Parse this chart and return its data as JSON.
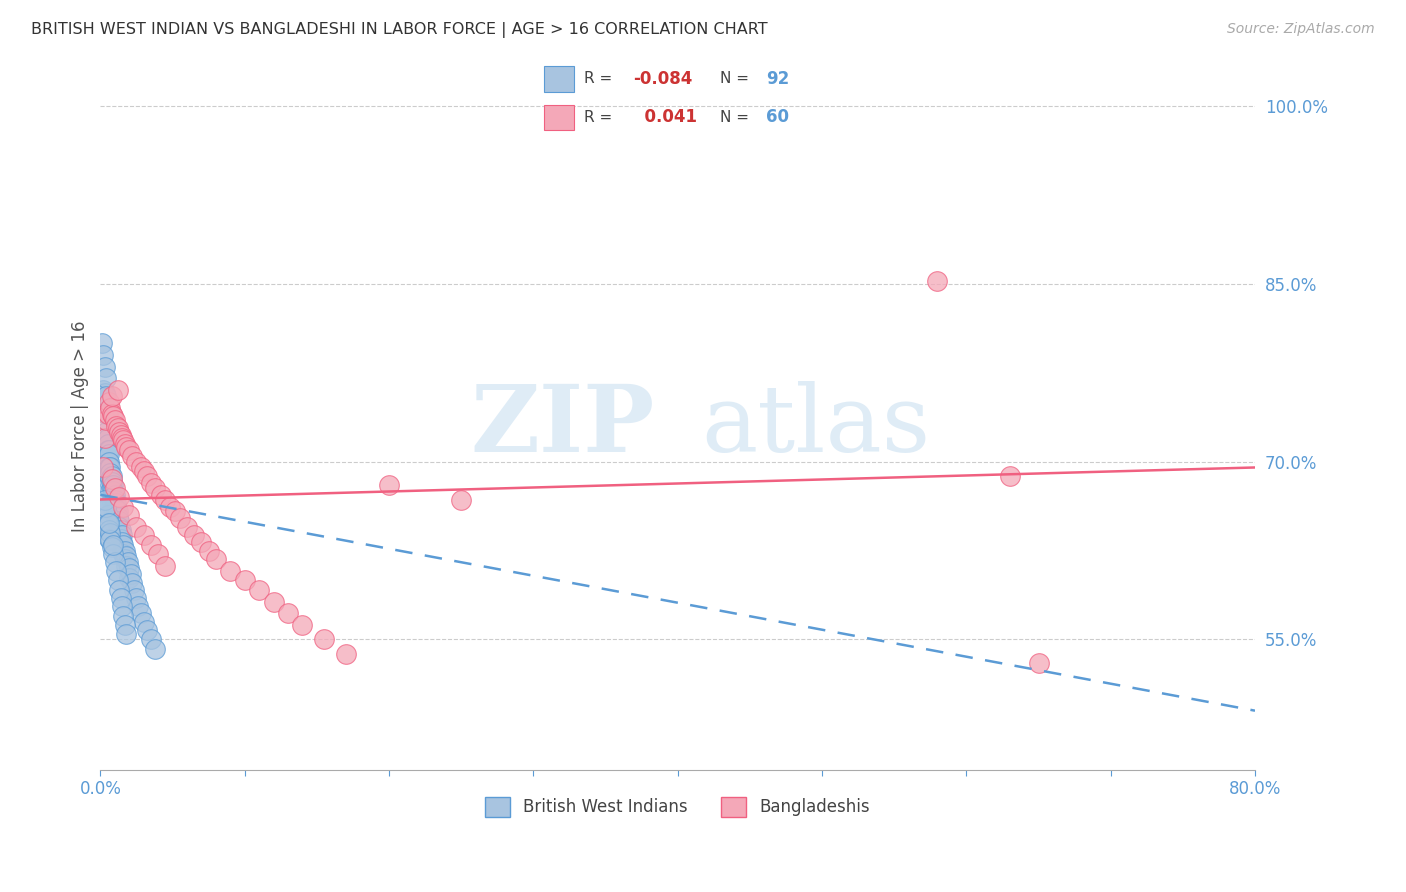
{
  "title": "BRITISH WEST INDIAN VS BANGLADESHI IN LABOR FORCE | AGE > 16 CORRELATION CHART",
  "source": "Source: ZipAtlas.com",
  "ylabel": "In Labor Force | Age > 16",
  "xlim": [
    0.0,
    0.8
  ],
  "ylim": [
    0.44,
    1.02
  ],
  "yticks": [
    0.55,
    0.7,
    0.85,
    1.0
  ],
  "yticklabels": [
    "55.0%",
    "70.0%",
    "85.0%",
    "100.0%"
  ],
  "blue_R": -0.084,
  "blue_N": 92,
  "pink_R": 0.041,
  "pink_N": 60,
  "blue_color": "#a8c4e0",
  "pink_color": "#f4a8b8",
  "blue_line_color": "#5b9bd5",
  "pink_line_color": "#f06080",
  "watermark_zip": "ZIP",
  "watermark_atlas": "atlas",
  "legend_blue_label": "British West Indians",
  "legend_pink_label": "Bangladeshis",
  "blue_x": [
    0.001,
    0.002,
    0.002,
    0.003,
    0.003,
    0.003,
    0.004,
    0.004,
    0.004,
    0.004,
    0.005,
    0.005,
    0.005,
    0.005,
    0.006,
    0.006,
    0.006,
    0.006,
    0.006,
    0.007,
    0.007,
    0.007,
    0.007,
    0.007,
    0.008,
    0.008,
    0.008,
    0.008,
    0.008,
    0.009,
    0.009,
    0.009,
    0.009,
    0.01,
    0.01,
    0.01,
    0.01,
    0.011,
    0.011,
    0.011,
    0.012,
    0.012,
    0.012,
    0.013,
    0.013,
    0.013,
    0.014,
    0.014,
    0.015,
    0.015,
    0.015,
    0.016,
    0.016,
    0.017,
    0.017,
    0.018,
    0.018,
    0.019,
    0.02,
    0.02,
    0.021,
    0.022,
    0.023,
    0.025,
    0.026,
    0.028,
    0.03,
    0.032,
    0.035,
    0.038,
    0.004,
    0.005,
    0.005,
    0.006,
    0.006,
    0.007,
    0.007,
    0.008,
    0.009,
    0.01,
    0.011,
    0.012,
    0.013,
    0.014,
    0.015,
    0.016,
    0.017,
    0.018,
    0.003,
    0.004,
    0.006,
    0.009
  ],
  "blue_y": [
    0.8,
    0.79,
    0.76,
    0.78,
    0.758,
    0.742,
    0.77,
    0.755,
    0.74,
    0.725,
    0.72,
    0.715,
    0.71,
    0.7,
    0.71,
    0.706,
    0.7,
    0.695,
    0.688,
    0.695,
    0.69,
    0.685,
    0.68,
    0.675,
    0.688,
    0.683,
    0.678,
    0.672,
    0.665,
    0.68,
    0.675,
    0.67,
    0.66,
    0.672,
    0.668,
    0.663,
    0.655,
    0.665,
    0.66,
    0.652,
    0.658,
    0.653,
    0.645,
    0.65,
    0.645,
    0.638,
    0.642,
    0.635,
    0.638,
    0.632,
    0.625,
    0.63,
    0.622,
    0.625,
    0.618,
    0.62,
    0.612,
    0.615,
    0.61,
    0.602,
    0.605,
    0.598,
    0.592,
    0.585,
    0.578,
    0.572,
    0.565,
    0.558,
    0.55,
    0.542,
    0.66,
    0.655,
    0.648,
    0.642,
    0.635,
    0.64,
    0.634,
    0.628,
    0.622,
    0.615,
    0.608,
    0.6,
    0.592,
    0.585,
    0.578,
    0.57,
    0.562,
    0.555,
    0.668,
    0.662,
    0.648,
    0.63
  ],
  "pink_x": [
    0.002,
    0.003,
    0.004,
    0.005,
    0.006,
    0.007,
    0.008,
    0.009,
    0.01,
    0.011,
    0.012,
    0.013,
    0.014,
    0.015,
    0.016,
    0.017,
    0.018,
    0.02,
    0.022,
    0.025,
    0.028,
    0.03,
    0.032,
    0.035,
    0.038,
    0.042,
    0.045,
    0.048,
    0.052,
    0.055,
    0.06,
    0.065,
    0.07,
    0.075,
    0.08,
    0.09,
    0.1,
    0.11,
    0.12,
    0.13,
    0.14,
    0.155,
    0.17,
    0.008,
    0.01,
    0.013,
    0.016,
    0.02,
    0.025,
    0.03,
    0.035,
    0.04,
    0.045,
    0.2,
    0.25,
    0.58,
    0.63,
    0.008,
    0.012,
    0.65
  ],
  "pink_y": [
    0.695,
    0.72,
    0.735,
    0.74,
    0.75,
    0.745,
    0.74,
    0.738,
    0.735,
    0.73,
    0.728,
    0.725,
    0.722,
    0.72,
    0.718,
    0.715,
    0.712,
    0.71,
    0.705,
    0.7,
    0.695,
    0.692,
    0.688,
    0.682,
    0.678,
    0.672,
    0.668,
    0.662,
    0.658,
    0.652,
    0.645,
    0.638,
    0.632,
    0.625,
    0.618,
    0.608,
    0.6,
    0.592,
    0.582,
    0.572,
    0.562,
    0.55,
    0.538,
    0.685,
    0.678,
    0.67,
    0.662,
    0.655,
    0.645,
    0.638,
    0.63,
    0.622,
    0.612,
    0.68,
    0.668,
    0.852,
    0.688,
    0.755,
    0.76,
    0.53
  ],
  "blue_line_x": [
    0.0,
    0.8
  ],
  "blue_line_y": [
    0.672,
    0.49
  ],
  "pink_line_x": [
    0.0,
    0.8
  ],
  "pink_line_y": [
    0.668,
    0.695
  ]
}
